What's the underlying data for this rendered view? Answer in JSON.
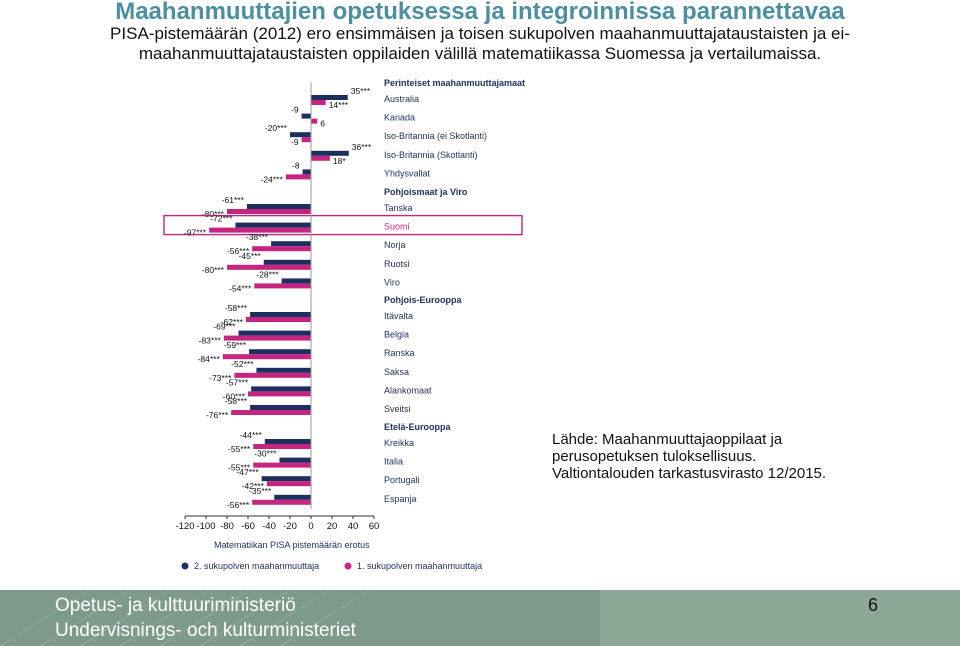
{
  "slide": {
    "title": "Maahanmuuttajien opetuksessa ja integroinnissa parannettavaa",
    "subtitle": "PISA-pistemäärän (2012) ero ensimmäisen ja toisen sukupolven maahanmuuttajataustaisten ja ei-maahanmuuttajataustaisten oppilaiden välillä matematiikassa Suomessa ja vertailumaissa.",
    "source": "Lähde: Maahanmuuttajaoppilaat ja perusopetuksen tuloksellisuus. Valtiontalouden tarkastusvirasto 12/2015.",
    "page_number": "6"
  },
  "footer": {
    "ministry_fi": "Opetus- ja kulttuuriministeriö",
    "ministry_sv": "Undervisnings- och kulturministeriet",
    "background_color": "#7e9a8a"
  },
  "chart_data": {
    "type": "bar",
    "orientation": "horizontal",
    "xlabel": "Matematiikan PISA pistemäärän erotus",
    "xlim": [
      -120,
      60
    ],
    "xticks": [
      "-120",
      "-100",
      "-80",
      "-60",
      "-40",
      "-20",
      "0",
      "20",
      "40",
      "60"
    ],
    "grid": false,
    "legend_position": "bottom",
    "highlighted_row": "Suomi",
    "series": [
      {
        "name": "2. sukupolven maahanmuuttaja",
        "color": "#1c2f5e"
      },
      {
        "name": "1. sukupolven maahanmuuttaja",
        "color": "#c4257e"
      }
    ],
    "groups": [
      {
        "name": "Perinteiset maahanmuuttajamaat",
        "rows": [
          {
            "country": "Australia",
            "second_gen": 35,
            "second_gen_label": "35***",
            "first_gen": 14,
            "first_gen_label": "14***"
          },
          {
            "country": "Kanada",
            "second_gen": -9,
            "second_gen_label": "-9",
            "first_gen": 6,
            "first_gen_label": "6"
          },
          {
            "country": "Iso-Britannia (ei Skotlanti)",
            "second_gen": -20,
            "second_gen_label": "-20***",
            "first_gen": -9,
            "first_gen_label": "-9"
          },
          {
            "country": "Iso-Britannia (Skotlanti)",
            "second_gen": 36,
            "second_gen_label": "36***",
            "first_gen": 18,
            "first_gen_label": "18*"
          },
          {
            "country": "Yhdysvallat",
            "second_gen": -8,
            "second_gen_label": "-8",
            "first_gen": -24,
            "first_gen_label": "-24***"
          }
        ]
      },
      {
        "name": "Pohjoismaat ja Viro",
        "rows": [
          {
            "country": "Tanska",
            "second_gen": -61,
            "second_gen_label": "-61***",
            "first_gen": -80,
            "first_gen_label": "-80***"
          },
          {
            "country": "Suomi",
            "second_gen": -72,
            "second_gen_label": "-72***",
            "first_gen": -97,
            "first_gen_label": "-97***"
          },
          {
            "country": "Norja",
            "second_gen": -38,
            "second_gen_label": "-38***",
            "first_gen": -56,
            "first_gen_label": "-56***"
          },
          {
            "country": "Ruotsi",
            "second_gen": -45,
            "second_gen_label": "-45***",
            "first_gen": -80,
            "first_gen_label": "-80***"
          },
          {
            "country": "Viro",
            "second_gen": -28,
            "second_gen_label": "-28***",
            "first_gen": -54,
            "first_gen_label": "-54***"
          }
        ]
      },
      {
        "name": "Pohjois-Eurooppa",
        "rows": [
          {
            "country": "Itävalta",
            "second_gen": -58,
            "second_gen_label": "-58***",
            "first_gen": -62,
            "first_gen_label": "-62***"
          },
          {
            "country": "Belgia",
            "second_gen": -69,
            "second_gen_label": "-69***",
            "first_gen": -83,
            "first_gen_label": "-83***"
          },
          {
            "country": "Ranska",
            "second_gen": -59,
            "second_gen_label": "-59***",
            "first_gen": -84,
            "first_gen_label": "-84***"
          },
          {
            "country": "Saksa",
            "second_gen": -52,
            "second_gen_label": "-52***",
            "first_gen": -73,
            "first_gen_label": "-73***"
          },
          {
            "country": "Alankomaat",
            "second_gen": -57,
            "second_gen_label": "-57***",
            "first_gen": -60,
            "first_gen_label": "-60***"
          },
          {
            "country": "Sveitsi",
            "second_gen": -58,
            "second_gen_label": "-58***",
            "first_gen": -76,
            "first_gen_label": "-76***"
          }
        ]
      },
      {
        "name": "Etelä-Eurooppa",
        "rows": [
          {
            "country": "Kreikka",
            "second_gen": -44,
            "second_gen_label": "-44***",
            "first_gen": -55,
            "first_gen_label": "-55***"
          },
          {
            "country": "Italia",
            "second_gen": -30,
            "second_gen_label": "-30***",
            "first_gen": -55,
            "first_gen_label": "-55***"
          },
          {
            "country": "Portugali",
            "second_gen": -47,
            "second_gen_label": "-47***",
            "first_gen": -42,
            "first_gen_label": "-42***"
          },
          {
            "country": "Espanja",
            "second_gen": -35,
            "second_gen_label": "-35***",
            "first_gen": -56,
            "first_gen_label": "-56***"
          }
        ]
      }
    ]
  }
}
